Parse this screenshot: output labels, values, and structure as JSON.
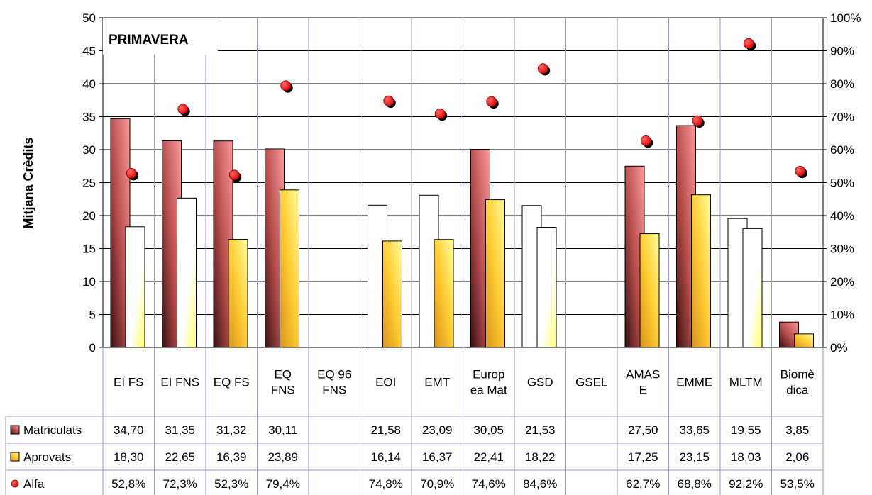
{
  "chart_data": {
    "type": "bar",
    "title": "PRIMAVERA",
    "ylabel": "Mitjana Crèdits",
    "ylim": [
      0,
      50
    ],
    "y_ticks": [
      "0",
      "5",
      "10",
      "15",
      "20",
      "25",
      "30",
      "35",
      "40",
      "45",
      "50"
    ],
    "y2lim": [
      0,
      100
    ],
    "y2_ticks": [
      "0%",
      "10%",
      "20%",
      "30%",
      "40%",
      "50%",
      "60%",
      "70%",
      "80%",
      "90%",
      "100%"
    ],
    "grid": true,
    "legend": "data-table-left",
    "categories": [
      [
        "EI FS"
      ],
      [
        "EI FNS"
      ],
      [
        "EQ FS"
      ],
      [
        "EQ",
        "FNS"
      ],
      [
        "EQ 96",
        "FNS"
      ],
      [
        "EOI"
      ],
      [
        "EMT"
      ],
      [
        "Europ",
        "ea Mat"
      ],
      [
        "GSD"
      ],
      [
        "GSEL"
      ],
      [
        "AMAS",
        "E"
      ],
      [
        "EMME"
      ],
      [
        "MLTM"
      ],
      [
        "Biomè",
        "dica"
      ]
    ],
    "series": [
      {
        "name": "Matriculats",
        "type": "bar",
        "color": "#c85a5a",
        "values": [
          34.7,
          31.35,
          31.32,
          30.11,
          null,
          21.58,
          23.09,
          30.05,
          21.53,
          null,
          27.5,
          33.65,
          19.55,
          3.85
        ],
        "labels": [
          "34,70",
          "31,35",
          "31,32",
          "30,11",
          "",
          "21,58",
          "23,09",
          "30,05",
          "21,53",
          "",
          "27,50",
          "33,65",
          "19,55",
          "3,85"
        ]
      },
      {
        "name": "Aprovats",
        "type": "bar",
        "color": "#ffd23c",
        "values": [
          18.3,
          22.65,
          16.39,
          23.89,
          null,
          16.14,
          16.37,
          22.41,
          18.22,
          null,
          17.25,
          23.15,
          18.03,
          2.06
        ],
        "labels": [
          "18,30",
          "22,65",
          "16,39",
          "23,89",
          "",
          "16,14",
          "16,37",
          "22,41",
          "18,22",
          "",
          "17,25",
          "23,15",
          "18,03",
          "2,06"
        ]
      },
      {
        "name": "Alfa",
        "type": "scatter",
        "axis": "right",
        "color": "#ff0000",
        "values": [
          52.8,
          72.3,
          52.3,
          79.4,
          null,
          74.8,
          70.9,
          74.6,
          84.6,
          null,
          62.7,
          68.8,
          92.2,
          53.5
        ],
        "labels": [
          "52,8%",
          "72,3%",
          "52,3%",
          "79,4%",
          "",
          "74,8%",
          "70,9%",
          "74,6%",
          "84,6%",
          "",
          "62,7%",
          "68,8%",
          "92,2%",
          "53,5%"
        ]
      }
    ],
    "white_matriculats_categories": [
      "EOI",
      "EMT",
      "GSD",
      "MLTM"
    ],
    "white_aprovats_categories": [
      "EI FS",
      "EI FNS",
      "GSD",
      "MLTM"
    ]
  }
}
